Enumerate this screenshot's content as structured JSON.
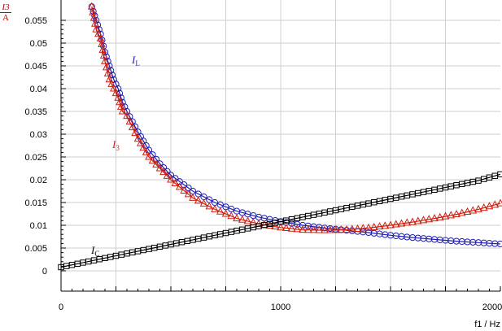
{
  "chart_data": {
    "type": "line",
    "title": "",
    "ylabel": {
      "numerator": "I3",
      "denominator": "A"
    },
    "xlabel": "f1 / Hz",
    "xlim": [
      0,
      2000
    ],
    "ylim": [
      -0.004,
      0.059
    ],
    "x_ticks": [
      0,
      1000,
      2000
    ],
    "y_ticks": [
      0,
      0.005,
      0.01,
      0.015,
      0.02,
      0.025,
      0.03,
      0.035,
      0.04,
      0.045,
      0.05,
      0.055
    ],
    "y_tick_labels": [
      "0",
      "0.005",
      "0.01",
      "0.015",
      "0.02",
      "0.025",
      "0.03",
      "0.035",
      "0.04",
      "0.045",
      "0.05",
      "0.055"
    ],
    "x_tick_labels": [
      "0",
      "1000",
      "2000"
    ],
    "grid": true,
    "series": [
      {
        "name": "IL",
        "label_main": "I",
        "label_sub": "L",
        "color": "#1f1fb4",
        "marker": "circle",
        "x": [
          140,
          160,
          180,
          200,
          220,
          240,
          260,
          280,
          300,
          350,
          400,
          450,
          500,
          600,
          700,
          800,
          900,
          1000,
          1100,
          1200,
          1300,
          1400,
          1500,
          1600,
          1700,
          1800,
          1900,
          2000
        ],
        "y": [
          0.058,
          0.055,
          0.052,
          0.048,
          0.045,
          0.042,
          0.04,
          0.037,
          0.035,
          0.0305,
          0.0265,
          0.0235,
          0.021,
          0.0175,
          0.015,
          0.0131,
          0.0118,
          0.0108,
          0.01,
          0.0094,
          0.0089,
          0.0084,
          0.0078,
          0.0073,
          0.0069,
          0.0065,
          0.0062,
          0.0059
        ]
      },
      {
        "name": "I3",
        "label_main": "I",
        "label_sub": "3",
        "color": "#d02010",
        "marker": "triangle",
        "x": [
          140,
          160,
          180,
          200,
          220,
          240,
          260,
          280,
          300,
          350,
          400,
          450,
          500,
          600,
          700,
          800,
          900,
          1000,
          1100,
          1200,
          1300,
          1400,
          1500,
          1600,
          1700,
          1800,
          1900,
          2000
        ],
        "y": [
          0.058,
          0.053,
          0.051,
          0.046,
          0.042,
          0.04,
          0.038,
          0.035,
          0.034,
          0.029,
          0.025,
          0.0225,
          0.02,
          0.016,
          0.0135,
          0.0115,
          0.0103,
          0.0095,
          0.009,
          0.0089,
          0.009,
          0.0094,
          0.01,
          0.0107,
          0.0115,
          0.0124,
          0.0135,
          0.0148
        ]
      },
      {
        "name": "IC",
        "label_main": "I",
        "label_sub": "C",
        "color": "#000000",
        "marker": "square",
        "x": [
          0,
          100,
          200,
          300,
          400,
          500,
          600,
          700,
          800,
          900,
          1000,
          1100,
          1200,
          1300,
          1400,
          1500,
          1600,
          1700,
          1800,
          1900,
          2000
        ],
        "y": [
          0.0008,
          0.0018,
          0.0028,
          0.0038,
          0.0048,
          0.0058,
          0.0068,
          0.0078,
          0.0088,
          0.0098,
          0.0108,
          0.0118,
          0.0128,
          0.0138,
          0.0148,
          0.0158,
          0.0168,
          0.0178,
          0.0188,
          0.0198,
          0.0212
        ]
      }
    ]
  }
}
